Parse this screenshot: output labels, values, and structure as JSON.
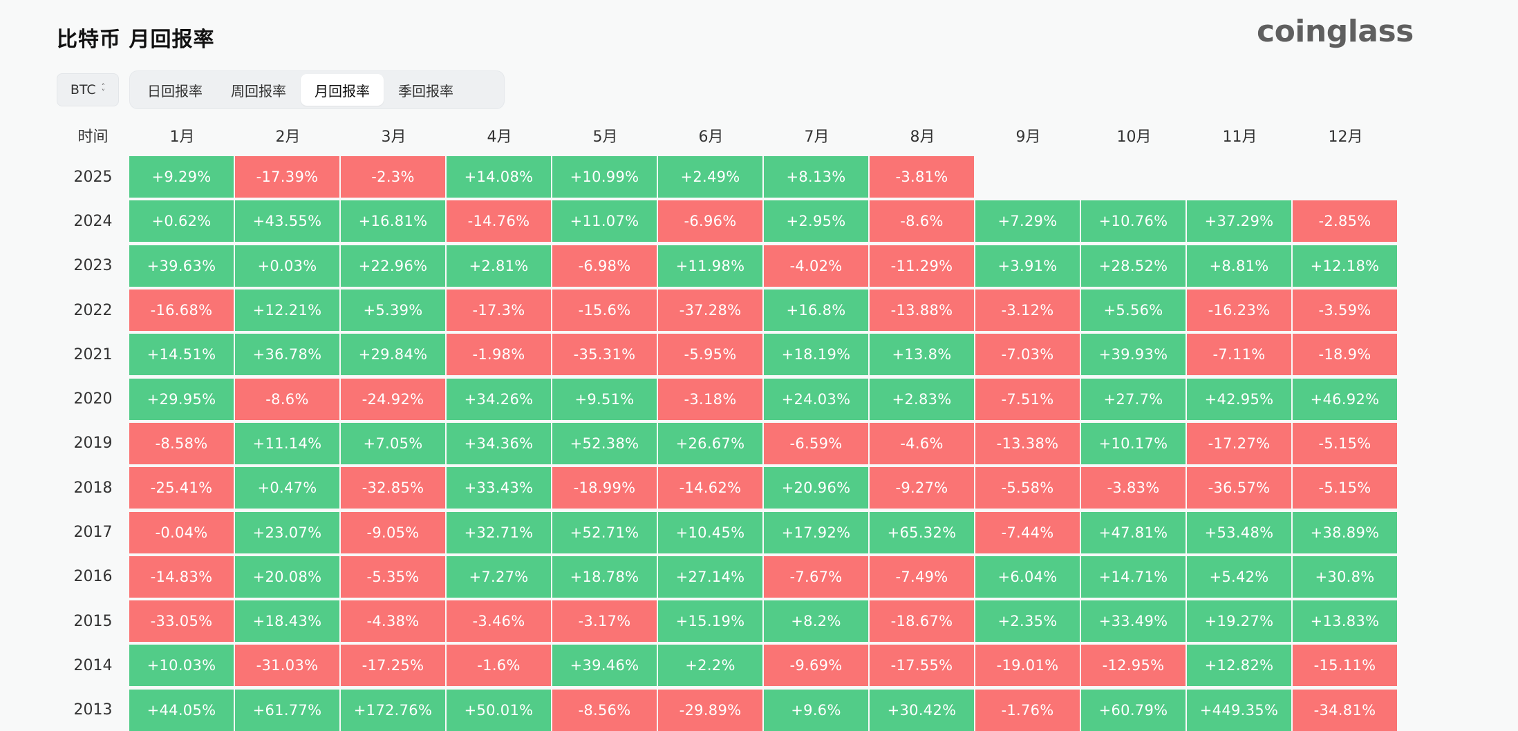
{
  "header": {
    "title": "比特币 月回报率",
    "brand": "coinglass"
  },
  "controls": {
    "coin": "BTC",
    "tabs": [
      {
        "label": "日回报率",
        "active": false
      },
      {
        "label": "周回报率",
        "active": false
      },
      {
        "label": "月回报率",
        "active": true
      },
      {
        "label": "季回报率",
        "active": false
      }
    ]
  },
  "colors": {
    "positive": "#52cc88",
    "negative": "#fa7474"
  },
  "chart_data": {
    "type": "heatmap",
    "row_header": "时间",
    "columns": [
      "1月",
      "2月",
      "3月",
      "4月",
      "5月",
      "6月",
      "7月",
      "8月",
      "9月",
      "10月",
      "11月",
      "12月"
    ],
    "rows": [
      {
        "year": "2025",
        "values": [
          "+9.29%",
          "-17.39%",
          "-2.3%",
          "+14.08%",
          "+10.99%",
          "+2.49%",
          "+8.13%",
          "-3.81%",
          null,
          null,
          null,
          null
        ]
      },
      {
        "year": "2024",
        "values": [
          "+0.62%",
          "+43.55%",
          "+16.81%",
          "-14.76%",
          "+11.07%",
          "-6.96%",
          "+2.95%",
          "-8.6%",
          "+7.29%",
          "+10.76%",
          "+37.29%",
          "-2.85%"
        ]
      },
      {
        "year": "2023",
        "values": [
          "+39.63%",
          "+0.03%",
          "+22.96%",
          "+2.81%",
          "-6.98%",
          "+11.98%",
          "-4.02%",
          "-11.29%",
          "+3.91%",
          "+28.52%",
          "+8.81%",
          "+12.18%"
        ]
      },
      {
        "year": "2022",
        "values": [
          "-16.68%",
          "+12.21%",
          "+5.39%",
          "-17.3%",
          "-15.6%",
          "-37.28%",
          "+16.8%",
          "-13.88%",
          "-3.12%",
          "+5.56%",
          "-16.23%",
          "-3.59%"
        ]
      },
      {
        "year": "2021",
        "values": [
          "+14.51%",
          "+36.78%",
          "+29.84%",
          "-1.98%",
          "-35.31%",
          "-5.95%",
          "+18.19%",
          "+13.8%",
          "-7.03%",
          "+39.93%",
          "-7.11%",
          "-18.9%"
        ]
      },
      {
        "year": "2020",
        "values": [
          "+29.95%",
          "-8.6%",
          "-24.92%",
          "+34.26%",
          "+9.51%",
          "-3.18%",
          "+24.03%",
          "+2.83%",
          "-7.51%",
          "+27.7%",
          "+42.95%",
          "+46.92%"
        ]
      },
      {
        "year": "2019",
        "values": [
          "-8.58%",
          "+11.14%",
          "+7.05%",
          "+34.36%",
          "+52.38%",
          "+26.67%",
          "-6.59%",
          "-4.6%",
          "-13.38%",
          "+10.17%",
          "-17.27%",
          "-5.15%"
        ]
      },
      {
        "year": "2018",
        "values": [
          "-25.41%",
          "+0.47%",
          "-32.85%",
          "+33.43%",
          "-18.99%",
          "-14.62%",
          "+20.96%",
          "-9.27%",
          "-5.58%",
          "-3.83%",
          "-36.57%",
          "-5.15%"
        ]
      },
      {
        "year": "2017",
        "values": [
          "-0.04%",
          "+23.07%",
          "-9.05%",
          "+32.71%",
          "+52.71%",
          "+10.45%",
          "+17.92%",
          "+65.32%",
          "-7.44%",
          "+47.81%",
          "+53.48%",
          "+38.89%"
        ]
      },
      {
        "year": "2016",
        "values": [
          "-14.83%",
          "+20.08%",
          "-5.35%",
          "+7.27%",
          "+18.78%",
          "+27.14%",
          "-7.67%",
          "-7.49%",
          "+6.04%",
          "+14.71%",
          "+5.42%",
          "+30.8%"
        ]
      },
      {
        "year": "2015",
        "values": [
          "-33.05%",
          "+18.43%",
          "-4.38%",
          "-3.46%",
          "-3.17%",
          "+15.19%",
          "+8.2%",
          "-18.67%",
          "+2.35%",
          "+33.49%",
          "+19.27%",
          "+13.83%"
        ]
      },
      {
        "year": "2014",
        "values": [
          "+10.03%",
          "-31.03%",
          "-17.25%",
          "-1.6%",
          "+39.46%",
          "+2.2%",
          "-9.69%",
          "-17.55%",
          "-19.01%",
          "-12.95%",
          "+12.82%",
          "-15.11%"
        ]
      },
      {
        "year": "2013",
        "values": [
          "+44.05%",
          "+61.77%",
          "+172.76%",
          "+50.01%",
          "-8.56%",
          "-29.89%",
          "+9.6%",
          "+30.42%",
          "-1.76%",
          "+60.79%",
          "+449.35%",
          "-34.81%"
        ]
      }
    ]
  }
}
